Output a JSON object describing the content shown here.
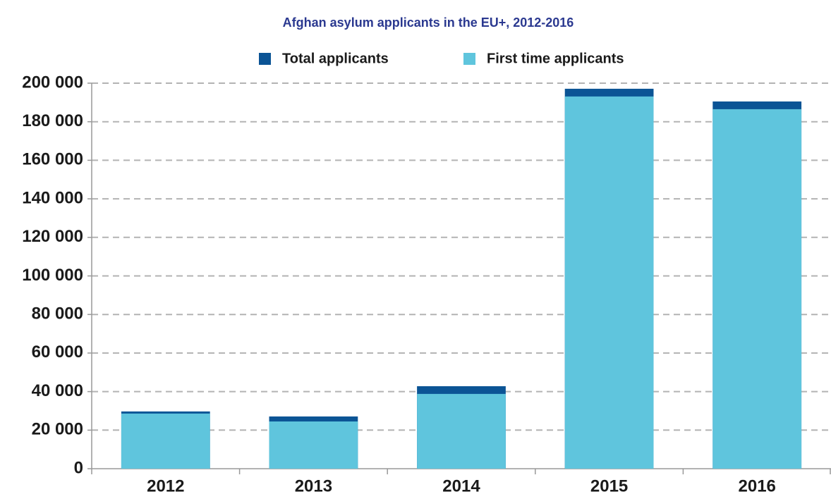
{
  "chart_data": {
    "type": "bar",
    "title": "Afghan asylum applicants in the EU+, 2012-2016",
    "categories": [
      "2012",
      "2013",
      "2014",
      "2015",
      "2016"
    ],
    "series": [
      {
        "name": "Total applicants",
        "color": "#0b5495",
        "values": [
          29700,
          27100,
          42800,
          197100,
          190500
        ]
      },
      {
        "name": "First time applicants",
        "color": "#5fc5dd",
        "values": [
          28600,
          24500,
          38800,
          193100,
          186500
        ]
      }
    ],
    "ylim": [
      0,
      200000
    ],
    "yticks": [
      0,
      {
        "value": 20000,
        "label": "20 000"
      },
      {
        "value": 40000,
        "label": "40 000"
      },
      {
        "value": 60000,
        "label": "60 000"
      },
      {
        "value": 80000,
        "label": "80 000"
      },
      {
        "value": 100000,
        "label": "100 000"
      },
      {
        "value": 120000,
        "label": "120 000"
      },
      {
        "value": 140000,
        "label": "140 000"
      },
      {
        "value": 160000,
        "label": "160 000"
      },
      {
        "value": 180000,
        "label": "180 000"
      },
      {
        "value": 200000,
        "label": "200 000"
      }
    ],
    "grid": true
  }
}
